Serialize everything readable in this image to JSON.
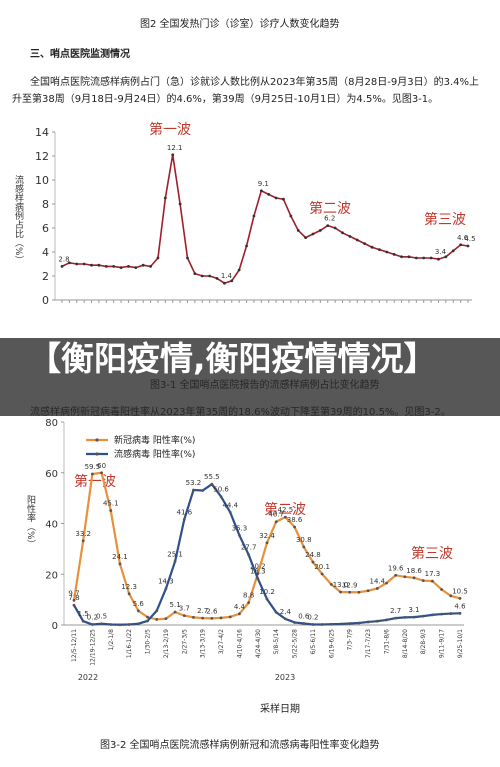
{
  "document": {
    "figure2_caption": "图2 全国发热门诊（诊室）诊疗人数变化趋势",
    "section_heading": "三、哨点医院监测情况",
    "paragraph1": "全国哨点医院流感样病例占门（急）诊就诊人数比例从2023年第35周（8月28日-9月3日）的3.4%上升至第38周（9月18日-9月24日）的4.6%，第39周（9月25日-10月1日）为4.5%。见图3-1。",
    "paragraph2": "流感样病例新冠病毒阳性率从2023年第35周的18.6%波动下降至第39周的10.5%。见图3-2。",
    "overlay_title": "【衡阳疫情,衡阳疫情情况】"
  },
  "chart_data": [
    {
      "type": "line",
      "title": "图3-1 全国哨点医院报告的流感样病例占比变化趋势",
      "y_label": "流感样病例占比（%）",
      "annotations": [
        "第一波",
        "第二波",
        "第三波"
      ],
      "ylim": [
        0,
        14
      ],
      "yticks": [
        0,
        2,
        4,
        6,
        8,
        10,
        12,
        14
      ],
      "grid": false,
      "series": [
        {
          "name": null,
          "color": "#a31d2b",
          "values": [
            2.8,
            3.1,
            3.0,
            3.0,
            2.9,
            2.9,
            2.8,
            2.8,
            2.7,
            2.8,
            2.7,
            2.9,
            2.8,
            3.5,
            8.5,
            12.1,
            8.0,
            3.5,
            2.2,
            2.0,
            2.0,
            1.8,
            1.4,
            1.6,
            2.5,
            4.5,
            7.0,
            9.1,
            8.8,
            8.5,
            8.4,
            7.0,
            5.8,
            5.2,
            5.5,
            5.8,
            6.2,
            6.0,
            5.6,
            5.3,
            5.0,
            4.7,
            4.4,
            4.2,
            4.0,
            3.8,
            3.6,
            3.6,
            3.5,
            3.5,
            3.5,
            3.4,
            3.6,
            4.1,
            4.6,
            4.5
          ],
          "value_labels": [
            "2.8",
            null,
            null,
            null,
            null,
            null,
            null,
            null,
            null,
            null,
            null,
            null,
            null,
            null,
            null,
            "12.1",
            null,
            null,
            null,
            null,
            null,
            null,
            "1.4",
            null,
            null,
            null,
            null,
            "9.1",
            null,
            null,
            null,
            null,
            null,
            null,
            null,
            null,
            "6.2",
            null,
            null,
            null,
            null,
            null,
            null,
            null,
            null,
            null,
            null,
            null,
            null,
            null,
            null,
            "3.4",
            null,
            null,
            "4.6",
            "4.5"
          ]
        }
      ]
    },
    {
      "type": "line",
      "title": "图3-2 全国哨点医院流感样病例新冠和流感病毒阳性率变化趋势",
      "y_label": "阳性率（%）",
      "x_label": "采样日期",
      "annotations": [
        "第一波",
        "第二波",
        "第三波",
        "2022",
        "2023"
      ],
      "ylim": [
        0,
        80
      ],
      "yticks": [
        0,
        20,
        40,
        60,
        80
      ],
      "grid": false,
      "legend": "top-left",
      "categories": [
        "12/5-12/11",
        null,
        "12/19-12/25",
        null,
        "1/2-1/8",
        null,
        "1/16-1/22",
        null,
        "1/30-2/5",
        null,
        "2/13-2/19",
        null,
        "2/27-3/5",
        null,
        "3/13-3/19",
        null,
        "3/27-4/2",
        null,
        "4/10-4/16",
        null,
        "4/24-4/30",
        null,
        "5/8-5/14",
        null,
        "5/22-5/28",
        null,
        "6/5-6/11",
        null,
        "6/19-6/25",
        null,
        "7/3-7/9",
        null,
        "7/17-7/23",
        null,
        "7/31-8/6",
        null,
        "8/14-8/20",
        null,
        "8/28-9/3",
        null,
        "9/11-9/17",
        null,
        "9/25-10/1"
      ],
      "series": [
        {
          "name": "新冠病毒 阳性率(%)",
          "color": "#e8913a",
          "values": [
            9.7,
            33.2,
            59.5,
            60,
            45.1,
            24.1,
            12.3,
            5.6,
            3.1,
            2.2,
            2.5,
            5.1,
            3.7,
            3.0,
            2.7,
            2.6,
            2.8,
            3.2,
            4.4,
            8.8,
            20.2,
            32.4,
            40.7,
            42.5,
            38.6,
            30.8,
            24.8,
            20.1,
            16.0,
            13.0,
            12.9,
            12.9,
            13.5,
            14.4,
            16.5,
            19.6,
            19.0,
            18.6,
            17.5,
            17.3,
            14.0,
            11.5,
            10.5
          ],
          "value_labels": [
            "9.7",
            "33.2",
            "59.5",
            "60",
            "45.1",
            "24.1",
            "12.3",
            "5.6",
            null,
            null,
            null,
            "5.1",
            "3.7",
            null,
            "2.7",
            "2.6",
            null,
            null,
            "4.4",
            "8.8",
            "20.2",
            "32.4",
            "40.7",
            "42.5",
            "38.6",
            "30.8",
            "24.8",
            "20.1",
            null,
            "13.0",
            "12.9",
            null,
            null,
            "14.4",
            null,
            "19.6",
            null,
            "18.6",
            null,
            "17.3",
            null,
            null,
            "10.5"
          ]
        },
        {
          "name": "流感病毒 阳性率(%)",
          "color": "#2f4f8f",
          "values": [
            7.8,
            1.5,
            0.2,
            0.5,
            0.2,
            0.1,
            0.2,
            0.5,
            1.6,
            5.6,
            14.3,
            25.1,
            41.6,
            53.2,
            53.0,
            55.5,
            50.6,
            44.4,
            35.3,
            27.7,
            18.3,
            10.2,
            5.0,
            2.4,
            1.0,
            0.6,
            0.2,
            0.2,
            0.3,
            0.4,
            0.6,
            0.8,
            1.2,
            1.5,
            2.0,
            2.7,
            3.0,
            3.1,
            3.5,
            4.0,
            4.3,
            4.5,
            4.6
          ],
          "value_labels": [
            "7.8",
            "1.5",
            "0.2",
            "0.5",
            null,
            null,
            null,
            null,
            null,
            null,
            "14.3",
            "25.1",
            "41.6",
            "53.2",
            null,
            "55.5",
            "50.6",
            "44.4",
            "35.3",
            "27.7",
            "18.3",
            "10.2",
            null,
            "2.4",
            null,
            "0.6",
            "0.2",
            null,
            null,
            null,
            null,
            null,
            null,
            null,
            null,
            "2.7",
            null,
            "3.1",
            null,
            null,
            null,
            null,
            "4.6"
          ]
        }
      ]
    }
  ]
}
